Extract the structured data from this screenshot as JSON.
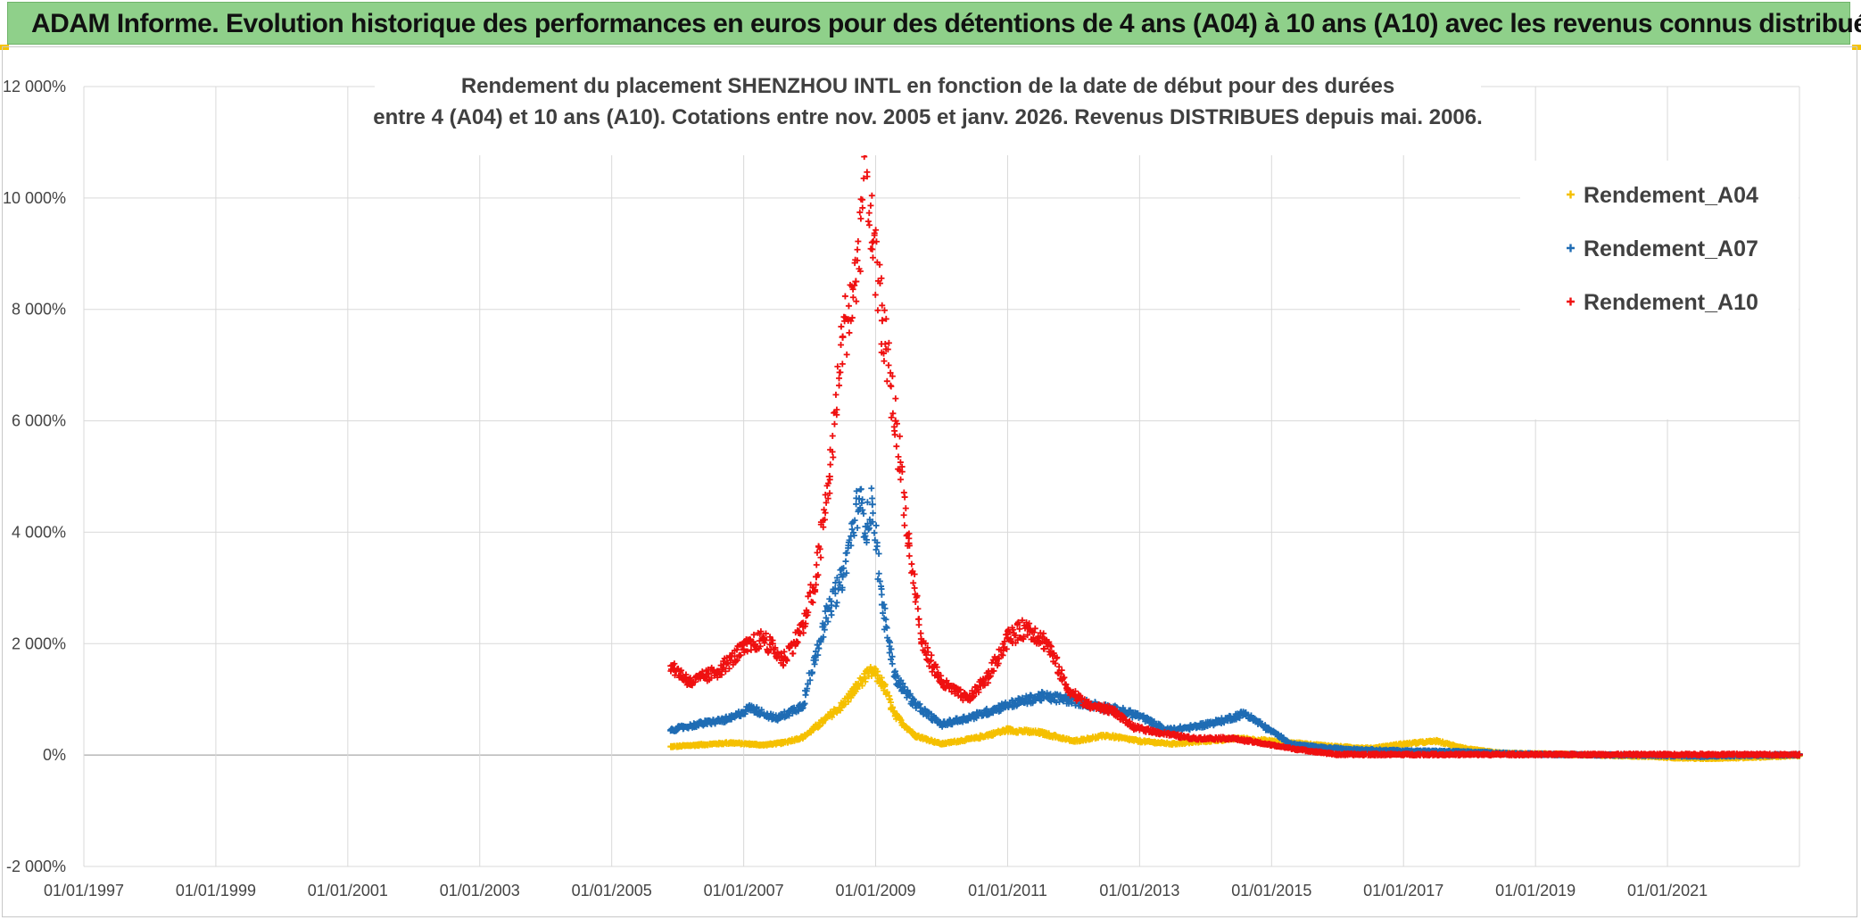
{
  "header": {
    "title": "ADAM Informe. Evolution historique des performances en euros pour des détentions de 4 ans (A04) à 10 ans (A10) avec les revenus connus distribués"
  },
  "chart_data": {
    "type": "scatter",
    "title_line1": "Rendement du placement SHENZHOU INTL en fonction de la date de début pour des durées",
    "title_line2": "entre 4 (A04) et 10 ans (A10). Cotations entre nov. 2005 et janv. 2026. Revenus DISTRIBUES depuis mai. 2006.",
    "x_axis": {
      "min_year": 1997.0,
      "max_year": 2023.0,
      "tick_labels": [
        "01/01/1997",
        "01/01/1999",
        "01/01/2001",
        "01/01/2003",
        "01/01/2005",
        "01/01/2007",
        "01/01/2009",
        "01/01/2011",
        "01/01/2013",
        "01/01/2015",
        "01/01/2017",
        "01/01/2019",
        "01/01/2021"
      ]
    },
    "y_axis": {
      "min": -2000,
      "max": 12000,
      "step": 2000,
      "unit": "%",
      "tick_labels": [
        "-2 000%",
        "0%",
        "2 000%",
        "4 000%",
        "6 000%",
        "8 000%",
        "10 000%",
        "12 000%"
      ]
    },
    "legend": {
      "position": "top-right",
      "marker": "+"
    },
    "series": [
      {
        "name": "Rendement_A04",
        "color": "#f5c000",
        "x": [
          2005.9,
          2006.3,
          2006.8,
          2007.3,
          2007.6,
          2007.9,
          2008.2,
          2008.5,
          2008.8,
          2008.95,
          2009.1,
          2009.3,
          2009.6,
          2010.0,
          2010.5,
          2011.0,
          2011.5,
          2012.0,
          2012.5,
          2013.0,
          2013.5,
          2014.0,
          2014.5,
          2015.0,
          2015.5,
          2016.0,
          2016.5,
          2017.0,
          2017.5,
          2018.0,
          2018.5,
          2019.0,
          2019.5,
          2020.0,
          2020.5,
          2021.0,
          2021.5,
          2022.0,
          2022.5,
          2023.0
        ],
        "y": [
          150,
          180,
          220,
          180,
          220,
          320,
          600,
          900,
          1350,
          1500,
          1300,
          700,
          350,
          200,
          300,
          450,
          400,
          250,
          350,
          250,
          200,
          250,
          300,
          250,
          200,
          150,
          120,
          200,
          250,
          100,
          30,
          20,
          10,
          0,
          -20,
          -40,
          -60,
          -50,
          -30,
          -10
        ]
      },
      {
        "name": "Rendement_A07",
        "color": "#1f6cb4",
        "x": [
          2005.9,
          2006.3,
          2006.8,
          2007.1,
          2007.5,
          2007.9,
          2008.2,
          2008.5,
          2008.75,
          2008.85,
          2008.95,
          2009.1,
          2009.3,
          2009.6,
          2010.0,
          2010.5,
          2011.0,
          2011.5,
          2011.9,
          2012.3,
          2012.7,
          2013.0,
          2013.4,
          2013.8,
          2014.2,
          2014.6,
          2014.9,
          2015.3,
          2015.8,
          2016.3,
          2016.8,
          2017.3,
          2017.8,
          2018.3,
          2018.8,
          2019.3,
          2019.8,
          2020.3,
          2021.0,
          2021.5,
          2022.0,
          2022.5,
          2023.0
        ],
        "y": [
          450,
          550,
          650,
          850,
          650,
          900,
          2300,
          3200,
          4600,
          4100,
          4500,
          2700,
          1400,
          900,
          550,
          700,
          900,
          1050,
          1000,
          900,
          800,
          700,
          450,
          500,
          600,
          750,
          500,
          200,
          130,
          100,
          80,
          70,
          60,
          40,
          20,
          10,
          5,
          0,
          -10,
          -20,
          -10,
          0,
          5
        ]
      },
      {
        "name": "Rendement_A10",
        "color": "#ef1010",
        "x": [
          2005.9,
          2006.2,
          2006.6,
          2007.0,
          2007.3,
          2007.6,
          2007.9,
          2008.1,
          2008.3,
          2008.5,
          2008.7,
          2008.85,
          2008.95,
          2009.1,
          2009.3,
          2009.5,
          2009.7,
          2010.0,
          2010.4,
          2010.7,
          2011.0,
          2011.3,
          2011.6,
          2011.9,
          2012.2,
          2012.6,
          2012.9,
          2013.3,
          2013.8,
          2014.4,
          2014.9,
          2015.4,
          2016.0,
          2016.5,
          2017.0,
          2018.0,
          2019.0,
          2020.0,
          2021.0,
          2022.0,
          2023.0
        ],
        "y": [
          1600,
          1300,
          1500,
          1900,
          2100,
          1700,
          2300,
          3200,
          5000,
          7500,
          8500,
          10800,
          9200,
          7800,
          6000,
          3800,
          2000,
          1300,
          1000,
          1400,
          2100,
          2300,
          2000,
          1200,
          900,
          800,
          500,
          400,
          300,
          300,
          200,
          100,
          10,
          10,
          10,
          10,
          10,
          10,
          10,
          10,
          10
        ]
      }
    ]
  }
}
